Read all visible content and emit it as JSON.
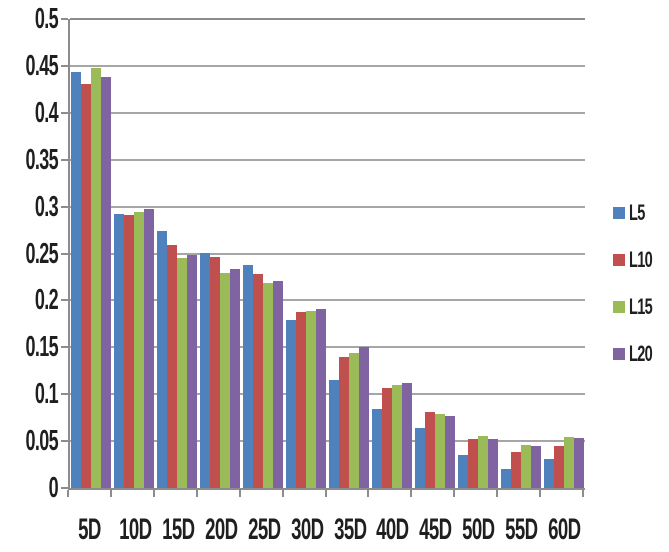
{
  "chart_data": {
    "type": "bar",
    "title": "",
    "xlabel": "",
    "ylabel": "",
    "ylim": [
      0,
      0.5
    ],
    "ytick_step": 0.05,
    "yticks": [
      "0.5",
      "0.45",
      "0.4",
      "0.35",
      "0.3",
      "0.25",
      "0.2",
      "0.15",
      "0.1",
      "0.05",
      "0"
    ],
    "grid": true,
    "legend_position": "right",
    "categories": [
      "5D",
      "10D",
      "15D",
      "20D",
      "25D",
      "30D",
      "35D",
      "40D",
      "45D",
      "50D",
      "55D",
      "60D"
    ],
    "series": [
      {
        "name": "L5",
        "color": "#4F81BD",
        "values": [
          0.443,
          0.292,
          0.274,
          0.251,
          0.238,
          0.179,
          0.115,
          0.084,
          0.064,
          0.035,
          0.02,
          0.031
        ]
      },
      {
        "name": "L10",
        "color": "#C0504D",
        "values": [
          0.431,
          0.291,
          0.259,
          0.246,
          0.228,
          0.188,
          0.14,
          0.107,
          0.081,
          0.052,
          0.038,
          0.045
        ]
      },
      {
        "name": "L15",
        "color": "#9BBB59",
        "values": [
          0.448,
          0.294,
          0.245,
          0.229,
          0.219,
          0.189,
          0.144,
          0.11,
          0.079,
          0.055,
          0.046,
          0.054
        ]
      },
      {
        "name": "L20",
        "color": "#8064A2",
        "values": [
          0.438,
          0.297,
          0.248,
          0.233,
          0.221,
          0.191,
          0.15,
          0.112,
          0.077,
          0.052,
          0.045,
          0.053
        ]
      }
    ],
    "colors": {
      "background": "#ffffff",
      "gridline": "#a6a6a6",
      "axis": "#8c8c8c",
      "text": "#1f1f1f"
    }
  }
}
